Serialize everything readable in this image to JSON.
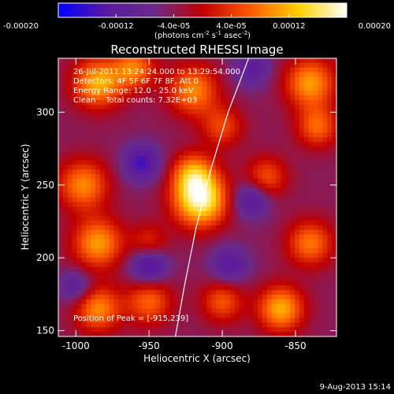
{
  "chart_data": {
    "type": "heatmap",
    "title": "Reconstructed RHESSI Image",
    "xlabel": "Heliocentric X (arcsec)",
    "ylabel": "Heliocentric Y (arcsec)",
    "xlim": [
      -1012,
      -822
    ],
    "ylim": [
      146,
      337
    ],
    "xticks": [
      -1000,
      -950,
      -900,
      -850
    ],
    "yticks": [
      150,
      200,
      250,
      300
    ],
    "xtick_labels": [
      "-1000",
      "-950",
      "-900",
      "-850"
    ],
    "ytick_labels": [
      "150",
      "200",
      "250",
      "300"
    ],
    "colorbar": {
      "min": -0.0002,
      "max": 0.0002,
      "ticks": [
        -0.0002,
        -0.00012,
        -4e-05,
        4e-05,
        0.00012,
        0.0002
      ],
      "tick_labels": [
        "-0.00020",
        "-0.00012",
        "-4.0e-05",
        "4.0e-05",
        "0.00012",
        "0.00020"
      ],
      "units_prefix": "(photons cm",
      "units_sup1": "-2",
      "units_mid": " s",
      "units_sup2": "-1",
      "units_suffix": " asec",
      "units_sup3": "-2",
      "units_end": ")",
      "colormap": [
        "#0000ff",
        "#5a1aa0",
        "#6a2a8a",
        "#c00000",
        "#ff5a00",
        "#ffd000",
        "#ffffff"
      ]
    },
    "annotations": [
      "26-Jul-2011 13:24:24.000 to 13:29:54.000",
      "Detectors: 4F 5F 6F 7F 8F, Att 0",
      "Energy Range: 12.0 - 25.0 keV",
      "Clean    Total counts: 7.32E+03"
    ],
    "peak_label": "Position of Peak = [-915,239]",
    "peak": [
      -915,
      239
    ],
    "limb_curve": {
      "x": [
        -932,
        -926,
        -918,
        -908,
        -896,
        -882
      ],
      "y": [
        146,
        180,
        220,
        260,
        300,
        337
      ]
    },
    "sources": [
      {
        "x": -915,
        "y": 240,
        "strength": 1.0,
        "sigma": 13
      },
      {
        "x": -920,
        "y": 258,
        "strength": 0.55,
        "sigma": 10
      },
      {
        "x": -985,
        "y": 320,
        "strength": 0.7,
        "sigma": 12
      },
      {
        "x": -960,
        "y": 330,
        "strength": 0.55,
        "sigma": 10
      },
      {
        "x": -920,
        "y": 315,
        "strength": 0.6,
        "sigma": 12
      },
      {
        "x": -840,
        "y": 320,
        "strength": 0.65,
        "sigma": 12
      },
      {
        "x": -835,
        "y": 290,
        "strength": 0.5,
        "sigma": 10
      },
      {
        "x": -870,
        "y": 255,
        "strength": 0.45,
        "sigma": 10
      },
      {
        "x": -995,
        "y": 250,
        "strength": 0.6,
        "sigma": 12
      },
      {
        "x": -985,
        "y": 210,
        "strength": 0.65,
        "sigma": 12
      },
      {
        "x": -985,
        "y": 165,
        "strength": 0.6,
        "sigma": 11
      },
      {
        "x": -950,
        "y": 170,
        "strength": 0.5,
        "sigma": 11
      },
      {
        "x": -860,
        "y": 165,
        "strength": 0.7,
        "sigma": 11
      },
      {
        "x": -900,
        "y": 170,
        "strength": 0.45,
        "sigma": 10
      },
      {
        "x": -840,
        "y": 210,
        "strength": 0.55,
        "sigma": 11
      },
      {
        "x": -900,
        "y": 290,
        "strength": 0.4,
        "sigma": 10
      },
      {
        "x": -950,
        "y": 210,
        "strength": 0.35,
        "sigma": 9
      },
      {
        "x": -955,
        "y": 265,
        "strength": -0.5,
        "sigma": 9
      },
      {
        "x": -950,
        "y": 195,
        "strength": -0.55,
        "sigma": 9
      },
      {
        "x": -880,
        "y": 240,
        "strength": -0.45,
        "sigma": 9
      },
      {
        "x": -895,
        "y": 195,
        "strength": -0.4,
        "sigma": 9
      },
      {
        "x": -880,
        "y": 330,
        "strength": -0.35,
        "sigma": 9
      },
      {
        "x": -1000,
        "y": 180,
        "strength": -0.35,
        "sigma": 8
      }
    ]
  },
  "footer_date": "9-Aug-2013 15:14"
}
